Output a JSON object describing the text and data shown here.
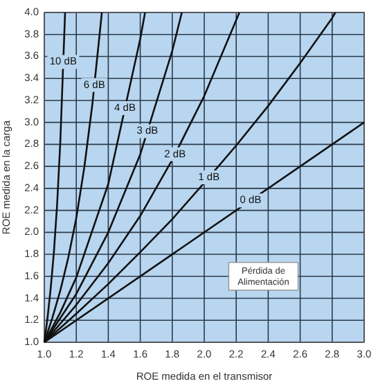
{
  "chart_data": {
    "type": "line",
    "xlabel": "ROE medida en el transmisor",
    "ylabel": "ROE medida en la carga",
    "xlim": [
      1.0,
      3.0
    ],
    "ylim": [
      1.0,
      4.0
    ],
    "xticks": [
      {
        "value": 1.0,
        "label": "1.0"
      },
      {
        "value": 1.2,
        "label": "1.2"
      },
      {
        "value": 1.4,
        "label": "1.4"
      },
      {
        "value": 1.6,
        "label": "1.6"
      },
      {
        "value": 1.8,
        "label": "1.8"
      },
      {
        "value": 2.0,
        "label": "2.0"
      },
      {
        "value": 2.2,
        "label": "2.2"
      },
      {
        "value": 2.4,
        "label": "2.4"
      },
      {
        "value": 2.6,
        "label": "2.6"
      },
      {
        "value": 2.8,
        "label": "2.8"
      },
      {
        "value": 3.0,
        "label": "3.0"
      }
    ],
    "yticks": [
      {
        "value": 1.0,
        "label": "1.0"
      },
      {
        "value": 1.2,
        "label": "1.2"
      },
      {
        "value": 1.4,
        "label": "1.4"
      },
      {
        "value": 1.6,
        "label": "1.6"
      },
      {
        "value": 1.8,
        "label": "1.8"
      },
      {
        "value": 2.0,
        "label": "2.0"
      },
      {
        "value": 2.2,
        "label": "2.2"
      },
      {
        "value": 2.4,
        "label": "2.4"
      },
      {
        "value": 2.6,
        "label": "2.6"
      },
      {
        "value": 2.8,
        "label": "2.8"
      },
      {
        "value": 3.0,
        "label": "3.0"
      },
      {
        "value": 3.2,
        "label": "3.2"
      },
      {
        "value": 3.4,
        "label": "3.4"
      },
      {
        "value": 3.6,
        "label": "3.6"
      },
      {
        "value": 3.8,
        "label": "3.8"
      },
      {
        "value": 4.0,
        "label": "4.0"
      }
    ],
    "grid": true,
    "marker": "none",
    "line_style": "solid",
    "series": [
      {
        "name": "0 dB",
        "color": "#111111",
        "x": [
          1.0,
          3.0
        ],
        "values": [
          1.0,
          3.0
        ]
      },
      {
        "name": "1 dB",
        "color": "#111111",
        "x": [
          1.0,
          1.2,
          1.4,
          1.6,
          1.8,
          2.0,
          2.2,
          2.4,
          2.6,
          2.8,
          2.82
        ],
        "values": [
          1.0,
          1.26,
          1.53,
          1.82,
          2.12,
          2.45,
          2.79,
          3.15,
          3.54,
          3.95,
          4.0
        ]
      },
      {
        "name": "2 dB",
        "color": "#111111",
        "x": [
          1.0,
          1.2,
          1.4,
          1.6,
          1.8,
          2.0,
          2.2,
          2.22
        ],
        "values": [
          1.0,
          1.34,
          1.72,
          2.15,
          2.66,
          3.24,
          3.93,
          4.0
        ]
      },
      {
        "name": "3 dB",
        "color": "#111111",
        "x": [
          1.0,
          1.2,
          1.4,
          1.6,
          1.8,
          1.86
        ],
        "values": [
          1.0,
          1.44,
          2.0,
          2.71,
          3.65,
          4.0
        ]
      },
      {
        "name": "4 dB",
        "color": "#111111",
        "x": [
          1.0,
          1.1,
          1.2,
          1.4,
          1.6,
          1.63
        ],
        "values": [
          1.0,
          1.27,
          1.59,
          2.44,
          3.76,
          4.0
        ]
      },
      {
        "name": "6 dB",
        "color": "#111111",
        "x": [
          1.0,
          1.05,
          1.1,
          1.15,
          1.2,
          1.25,
          1.3,
          1.36
        ],
        "values": [
          1.0,
          1.22,
          1.47,
          1.77,
          2.13,
          2.59,
          3.16,
          4.0
        ]
      },
      {
        "name": "10 dB",
        "color": "#111111",
        "x": [
          1.0,
          1.02,
          1.04,
          1.06,
          1.08,
          1.1,
          1.12,
          1.13
        ],
        "values": [
          1.0,
          1.22,
          1.49,
          1.82,
          2.25,
          2.82,
          3.61,
          4.0
        ]
      }
    ],
    "annotations": [
      "Pérdida de\nAlimentación"
    ]
  }
}
